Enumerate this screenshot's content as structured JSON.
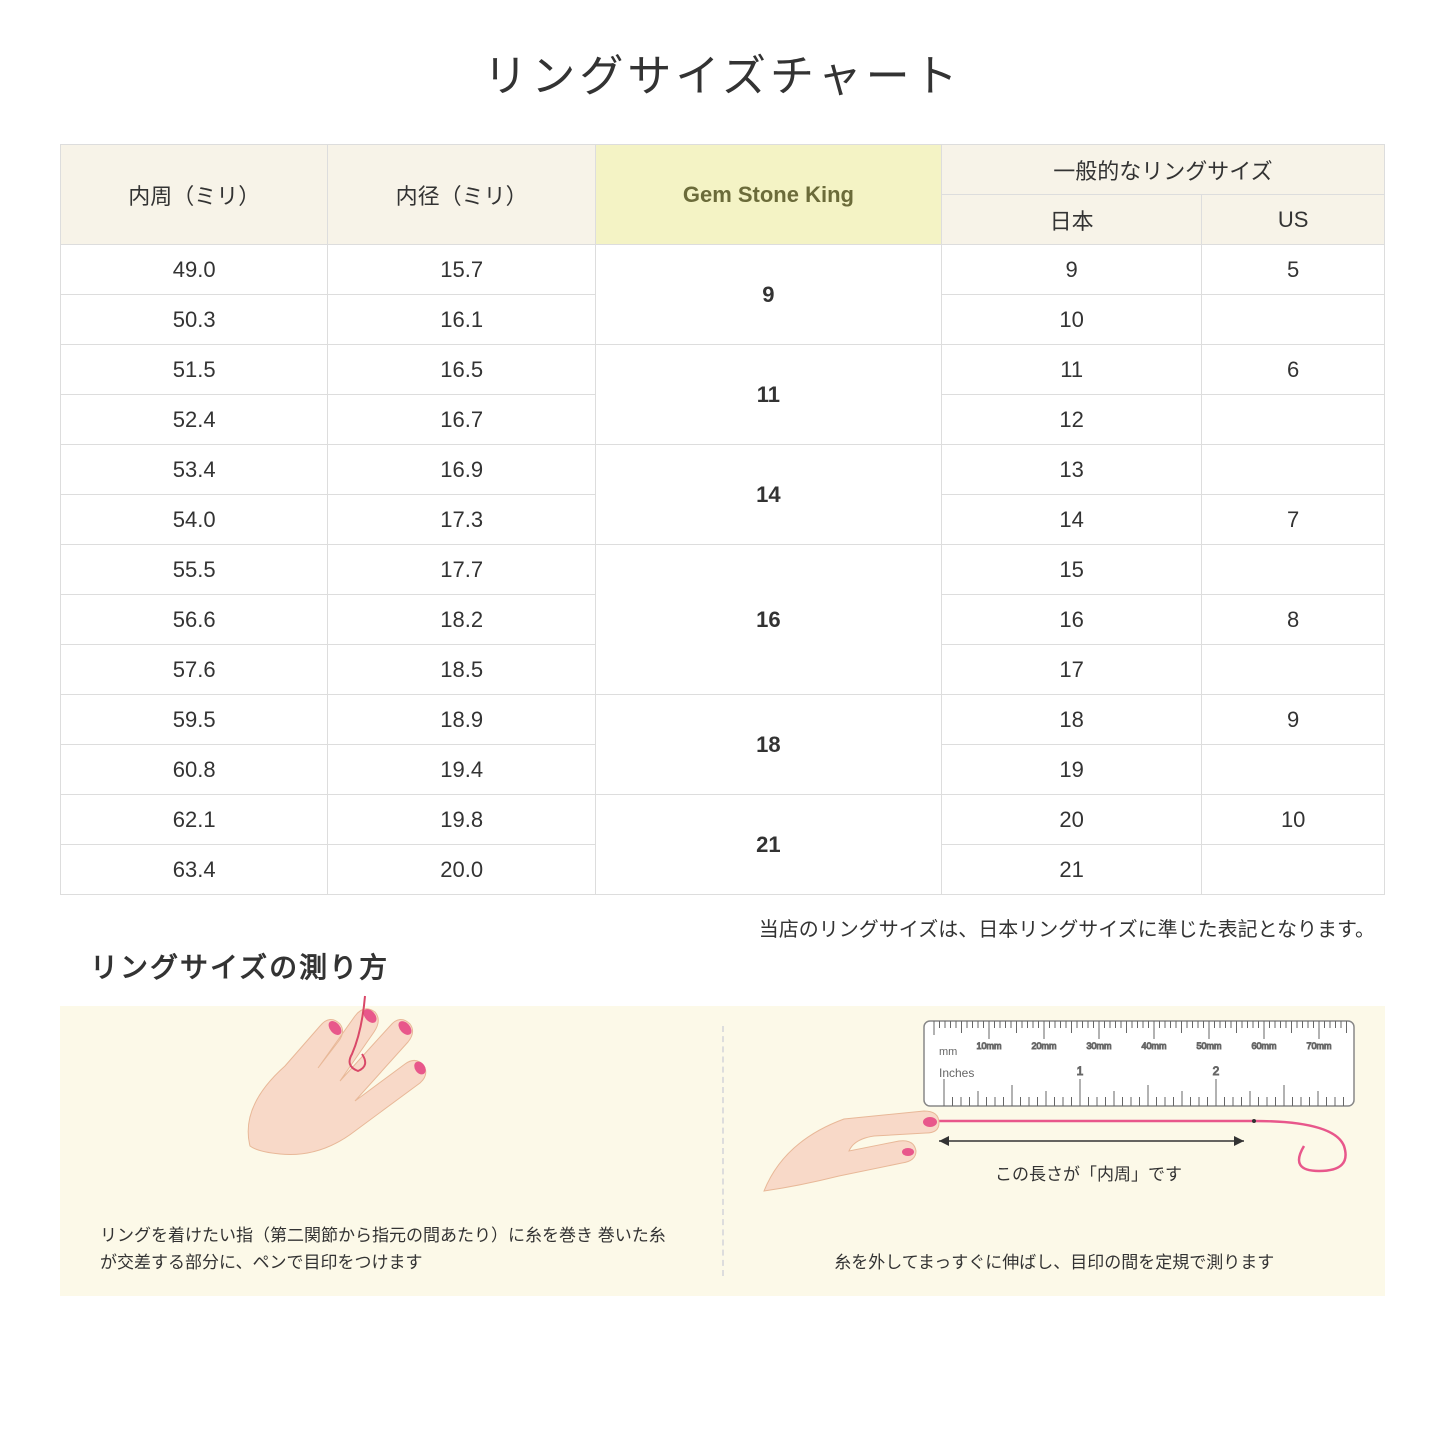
{
  "title": "リングサイズチャート",
  "table": {
    "headers": {
      "col1": "内周（ミリ）",
      "col2": "内径（ミリ）",
      "col3": "Gem Stone King",
      "col4_group": "一般的なリングサイズ",
      "col4a": "日本",
      "col4b": "US"
    },
    "rows": [
      {
        "c": "49.0",
        "d": "15.7",
        "gsk": "9",
        "gsk_span": 2,
        "jp": "9",
        "us": "5"
      },
      {
        "c": "50.3",
        "d": "16.1",
        "jp": "10",
        "us": ""
      },
      {
        "c": "51.5",
        "d": "16.5",
        "gsk": "11",
        "gsk_span": 2,
        "jp": "11",
        "us": "6"
      },
      {
        "c": "52.4",
        "d": "16.7",
        "jp": "12",
        "us": ""
      },
      {
        "c": "53.4",
        "d": "16.9",
        "gsk": "14",
        "gsk_span": 2,
        "jp": "13",
        "us": ""
      },
      {
        "c": "54.0",
        "d": "17.3",
        "jp": "14",
        "us": "7"
      },
      {
        "c": "55.5",
        "d": "17.7",
        "gsk": "16",
        "gsk_span": 3,
        "jp": "15",
        "us": ""
      },
      {
        "c": "56.6",
        "d": "18.2",
        "jp": "16",
        "us": "8"
      },
      {
        "c": "57.6",
        "d": "18.5",
        "jp": "17",
        "us": ""
      },
      {
        "c": "59.5",
        "d": "18.9",
        "gsk": "18",
        "gsk_span": 2,
        "jp": "18",
        "us": "9"
      },
      {
        "c": "60.8",
        "d": "19.4",
        "jp": "19",
        "us": ""
      },
      {
        "c": "62.1",
        "d": "19.8",
        "gsk": "21",
        "gsk_span": 2,
        "jp": "20",
        "us": "10"
      },
      {
        "c": "63.4",
        "d": "20.0",
        "jp": "21",
        "us": ""
      }
    ]
  },
  "note": "当店のリングサイズは、日本リングサイズに準じた表記となります。",
  "measure_title": "リングサイズの測り方",
  "instructions": {
    "left_caption": "リングを着けたい指（第二関節から指元の間あたり）に糸を巻き\n巻いた糸が交差する部分に、ペンで目印をつけます",
    "right_caption": "糸を外してまっすぐに伸ばし、目印の間を定規で測ります",
    "ruler_label": "この長さが「内周」です",
    "ruler_mm_label": "mm",
    "ruler_inches_label": "Inches",
    "ruler_mm_marks": [
      "10mm",
      "20mm",
      "30mm",
      "40mm",
      "50mm",
      "60mm",
      "70mm"
    ],
    "ruler_inch_marks": [
      "1",
      "2"
    ]
  },
  "colors": {
    "header_bg": "#f7f3e8",
    "gsk_bg": "#f4f3c5",
    "border": "#dddddd",
    "instruction_bg": "#fcf9e8",
    "skin": "#f8d9c8",
    "nail": "#e8578b",
    "thread": "#d94868"
  }
}
